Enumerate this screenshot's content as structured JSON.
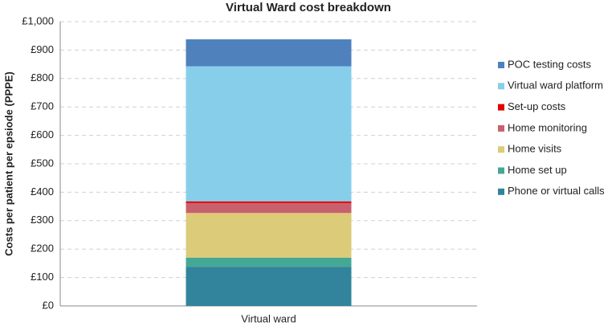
{
  "chart_data": {
    "type": "stacked-bar",
    "title": "Virtual Ward cost breakdown",
    "y_label": "Costs per  patient per epsiode  (PPPE)",
    "categories": [
      "Virtual ward"
    ],
    "series": [
      {
        "name": "Phone or virtual calls",
        "color": "#31849b",
        "values": [
          138
        ]
      },
      {
        "name": "Home set up",
        "color": "#45a895",
        "values": [
          32
        ]
      },
      {
        "name": "Home visits",
        "color": "#dccb78",
        "values": [
          157
        ]
      },
      {
        "name": "Home monitoring",
        "color": "#c9606e",
        "values": [
          35
        ]
      },
      {
        "name": "Set-up costs",
        "color": "#e00000",
        "values": [
          6
        ]
      },
      {
        "name": "Virtual ward platform",
        "color": "#87ceeb",
        "values": [
          475
        ]
      },
      {
        "name": "POC testing costs",
        "color": "#4f81bd",
        "values": [
          95
        ]
      }
    ],
    "ylim": [
      0,
      1000
    ],
    "yticks": [
      {
        "value": 0,
        "label": "£0"
      },
      {
        "value": 100,
        "label": "£100"
      },
      {
        "value": 200,
        "label": "£200"
      },
      {
        "value": 300,
        "label": "£300"
      },
      {
        "value": 400,
        "label": "£400"
      },
      {
        "value": 500,
        "label": "£500"
      },
      {
        "value": 600,
        "label": "£600"
      },
      {
        "value": 700,
        "label": "£700"
      },
      {
        "value": 800,
        "label": "£800"
      },
      {
        "value": 900,
        "label": "£900"
      },
      {
        "value": 1000,
        "label": "£1,000"
      }
    ],
    "grid": true,
    "legend": "right"
  }
}
